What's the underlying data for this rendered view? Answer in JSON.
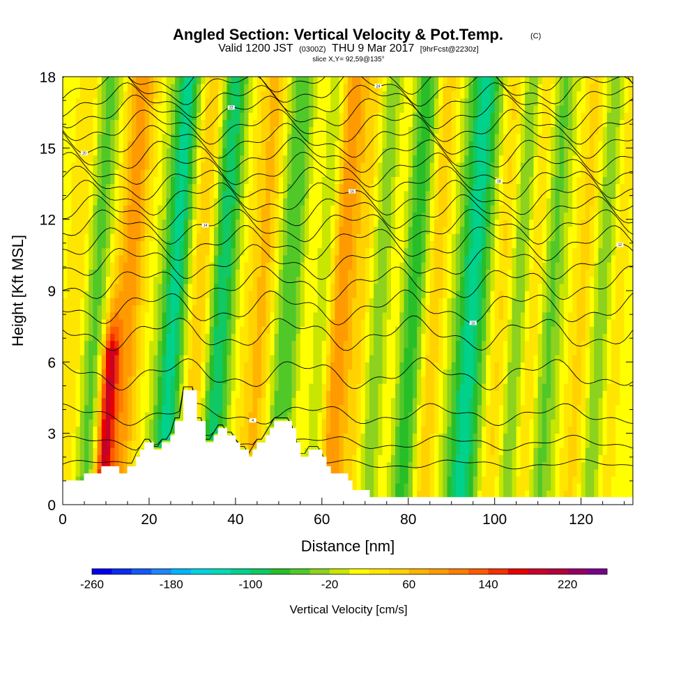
{
  "chart_data": {
    "type": "heatmap",
    "title": "Angled Section: Vertical Velocity & Pot.Temp.",
    "title_mark": "(C)",
    "subtitle_parts": [
      "Valid 1200 JST",
      "(0300Z)",
      "THU 9 Mar 2017",
      "[9hrFcst@2230z]"
    ],
    "slice_label": "slice X,Y= 92,59@135°",
    "xlabel": "Distance [nm]",
    "ylabel": "Height [Kft MSL]",
    "xlim": [
      0,
      132
    ],
    "ylim": [
      0,
      18
    ],
    "x_ticks": [
      0,
      20,
      40,
      60,
      80,
      100,
      120
    ],
    "y_ticks": [
      0,
      3,
      6,
      9,
      12,
      15,
      18
    ],
    "colorbar": {
      "label": "Vertical Velocity [cm/s]",
      "range": [
        -260,
        260
      ],
      "step": 20,
      "tick_values": [
        -260,
        -180,
        -100,
        -20,
        60,
        140,
        220
      ],
      "colors": [
        "#0000ee",
        "#0a2cf0",
        "#1458f4",
        "#1e84f8",
        "#00b4ff",
        "#00d2e0",
        "#00dcb4",
        "#00d28c",
        "#10c864",
        "#28be28",
        "#50c828",
        "#8cd21e",
        "#c8e600",
        "#ffff00",
        "#ffe600",
        "#ffd200",
        "#ffb400",
        "#ff9b00",
        "#ff7d00",
        "#ff5a00",
        "#f03200",
        "#e60000",
        "#c80028",
        "#b4003c",
        "#960064",
        "#78008c"
      ]
    },
    "terrain_kft": [
      [
        0,
        1
      ],
      [
        5,
        1
      ],
      [
        5,
        1.3
      ],
      [
        9,
        1.3
      ],
      [
        9,
        1.6
      ],
      [
        13,
        1.6
      ],
      [
        13,
        1.3
      ],
      [
        15,
        1.3
      ],
      [
        15,
        1.6
      ],
      [
        17,
        1.6
      ],
      [
        17,
        2
      ],
      [
        18,
        2
      ],
      [
        18,
        2.3
      ],
      [
        19,
        2.3
      ],
      [
        19,
        2.6
      ],
      [
        21,
        2.6
      ],
      [
        21,
        2.3
      ],
      [
        23,
        2.3
      ],
      [
        23,
        2.6
      ],
      [
        25,
        2.6
      ],
      [
        25,
        2.9
      ],
      [
        26,
        2.9
      ],
      [
        26,
        3.5
      ],
      [
        28,
        3.5
      ],
      [
        28,
        4.8
      ],
      [
        31,
        4.8
      ],
      [
        31,
        3.5
      ],
      [
        33,
        3.5
      ],
      [
        33,
        2.6
      ],
      [
        35,
        2.6
      ],
      [
        35,
        2.9
      ],
      [
        36,
        2.9
      ],
      [
        36,
        3.2
      ],
      [
        38,
        3.2
      ],
      [
        38,
        2.9
      ],
      [
        40,
        2.9
      ],
      [
        40,
        2.6
      ],
      [
        41,
        2.6
      ],
      [
        41,
        2.3
      ],
      [
        43,
        2.3
      ],
      [
        43,
        2
      ],
      [
        44,
        2
      ],
      [
        44,
        2.3
      ],
      [
        45,
        2.3
      ],
      [
        45,
        2.6
      ],
      [
        47,
        2.6
      ],
      [
        47,
        2.9
      ],
      [
        48,
        2.9
      ],
      [
        48,
        3.2
      ],
      [
        49,
        3.2
      ],
      [
        49,
        3.5
      ],
      [
        53,
        3.5
      ],
      [
        53,
        3.2
      ],
      [
        54,
        3.2
      ],
      [
        54,
        2.6
      ],
      [
        55,
        2.6
      ],
      [
        55,
        2
      ],
      [
        57,
        2
      ],
      [
        57,
        2.3
      ],
      [
        60,
        2.3
      ],
      [
        60,
        2
      ],
      [
        61,
        2
      ],
      [
        61,
        1.6
      ],
      [
        62,
        1.6
      ],
      [
        62,
        1.3
      ],
      [
        66,
        1.3
      ],
      [
        66,
        1
      ],
      [
        67,
        1
      ],
      [
        67,
        0.6
      ],
      [
        71,
        0.6
      ],
      [
        71,
        0.3
      ],
      [
        132,
        0.3
      ]
    ],
    "updrafts": [
      {
        "x": 3,
        "w": 2.0,
        "v": 40
      },
      {
        "x": 12,
        "w": 1.4,
        "v": 160,
        "ztop": 6.5
      },
      {
        "x": 15.5,
        "w": 2.5,
        "v": 90
      },
      {
        "x": 32,
        "w": 2.0,
        "v": 60
      },
      {
        "x": 44,
        "w": 2.5,
        "v": 30
      },
      {
        "x": 47,
        "w": 2.0,
        "v": 50
      },
      {
        "x": 57,
        "w": 2.5,
        "v": 40
      },
      {
        "x": 64,
        "w": 2.5,
        "v": 110
      },
      {
        "x": 70,
        "w": 2.0,
        "v": 50
      },
      {
        "x": 77,
        "w": 2.5,
        "v": 70
      },
      {
        "x": 86,
        "w": 2.0,
        "v": 60
      },
      {
        "x": 102,
        "w": 2.0,
        "v": 50
      },
      {
        "x": 109,
        "w": 2.0,
        "v": 60
      },
      {
        "x": 121,
        "w": 2.5,
        "v": 50
      },
      {
        "x": 128,
        "w": 2.0,
        "v": 40
      }
    ],
    "downdrafts": [
      {
        "x": 8,
        "w": 1.8,
        "v": -50
      },
      {
        "x": 26,
        "w": 2.0,
        "v": -110
      },
      {
        "x": 37,
        "w": 2.0,
        "v": -100
      },
      {
        "x": 53,
        "w": 2.5,
        "v": -70
      },
      {
        "x": 61,
        "w": 2.0,
        "v": -70
      },
      {
        "x": 74,
        "w": 2.5,
        "v": -70
      },
      {
        "x": 81,
        "w": 2.5,
        "v": -90
      },
      {
        "x": 95,
        "w": 2.5,
        "v": -110
      },
      {
        "x": 106,
        "w": 2.0,
        "v": -60
      },
      {
        "x": 113,
        "w": 2.0,
        "v": -50
      },
      {
        "x": 125,
        "w": 2.0,
        "v": -60
      }
    ],
    "theta_levels": [
      {
        "z": 1.7,
        "label": ""
      },
      {
        "z": 2.6,
        "label": ""
      },
      {
        "z": 3.8,
        "label": "4"
      },
      {
        "z": 5.5,
        "label": ""
      },
      {
        "z": 7.2,
        "label": ""
      },
      {
        "z": 8.3,
        "label": "10"
      },
      {
        "z": 9.3,
        "label": ""
      },
      {
        "z": 10.2,
        "label": "12"
      },
      {
        "z": 11,
        "label": ""
      },
      {
        "z": 11.7,
        "label": "14"
      },
      {
        "z": 12.3,
        "label": ""
      },
      {
        "z": 12.9,
        "label": "16"
      },
      {
        "z": 13.5,
        "label": ""
      },
      {
        "z": 14.1,
        "label": "18"
      },
      {
        "z": 14.7,
        "label": ""
      },
      {
        "z": 15.3,
        "label": "20"
      },
      {
        "z": 15.9,
        "label": ""
      },
      {
        "z": 16.5,
        "label": "22"
      },
      {
        "z": 17,
        "label": ""
      },
      {
        "z": 17.5,
        "label": "24"
      },
      {
        "z": 18,
        "label": ""
      }
    ]
  }
}
